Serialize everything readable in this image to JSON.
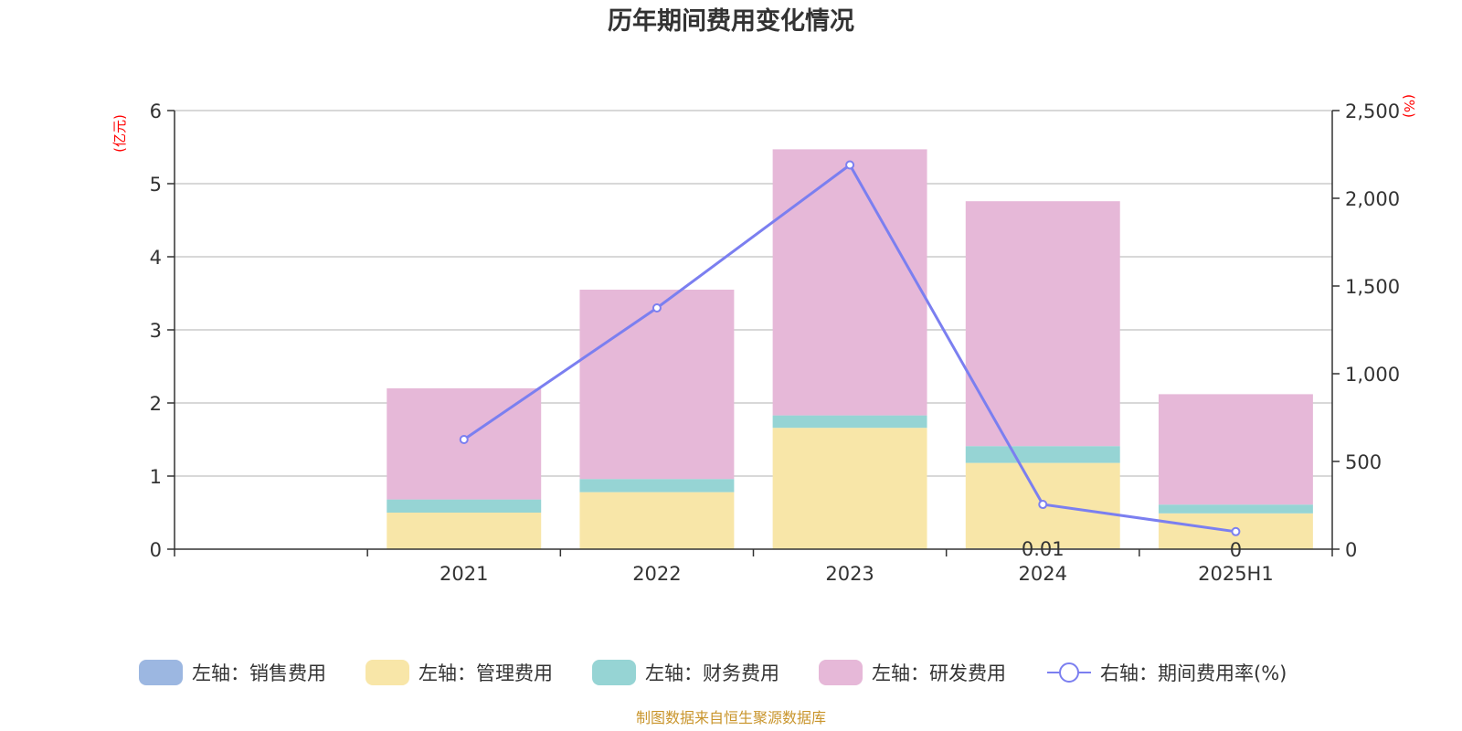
{
  "chart_data": {
    "type": "bar",
    "stacked": true,
    "title": "历年期间费用变化情况",
    "left_axis_unit": "(亿元)",
    "right_axis_unit": "(%)",
    "categories": [
      "",
      "2021",
      "2022",
      "2023",
      "2024",
      "2025H1"
    ],
    "left_ylim": [
      0,
      6
    ],
    "left_ticks": [
      "0",
      "1",
      "2",
      "3",
      "4",
      "5",
      "6"
    ],
    "right_ylim": [
      0,
      2500
    ],
    "right_ticks": [
      "0",
      "500",
      "1,000",
      "1,500",
      "2,000",
      "2,500"
    ],
    "series": [
      {
        "name": "左轴：销售费用",
        "axis": "left",
        "color": "#9cb7e1",
        "values": [
          null,
          0,
          0,
          0,
          0.01,
          0
        ]
      },
      {
        "name": "左轴：管理费用",
        "axis": "left",
        "color": "#f8e6a8",
        "values": [
          null,
          0.5,
          0.78,
          1.66,
          1.17,
          0.49
        ]
      },
      {
        "name": "左轴：财务费用",
        "axis": "left",
        "color": "#96d4d4",
        "values": [
          null,
          0.18,
          0.18,
          0.17,
          0.23,
          0.12
        ]
      },
      {
        "name": "左轴：研发费用",
        "axis": "left",
        "color": "#e6b8d8",
        "values": [
          null,
          1.52,
          2.59,
          3.64,
          3.35,
          1.51
        ]
      },
      {
        "name": "右轴：期间费用率(%)",
        "axis": "right",
        "type": "line",
        "color": "#7b7ff0",
        "values": [
          null,
          625,
          1375,
          2190,
          255,
          100
        ]
      }
    ],
    "data_labels": [
      {
        "category": "2024",
        "series": "左轴：销售费用",
        "text": "0.01"
      },
      {
        "category": "2025H1",
        "series": "左轴：销售费用",
        "text": "0"
      }
    ],
    "grid": true,
    "legend_position": "bottom"
  },
  "footer": {
    "source": "制图数据来自恒生聚源数据库"
  }
}
